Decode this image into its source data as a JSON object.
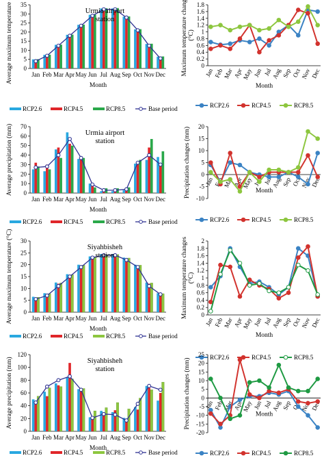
{
  "colors": {
    "rcp26": "#29a8e0",
    "rcp45": "#e0262a",
    "rcp85": "#2aa84a",
    "rcp85_light": "#8dc63f",
    "base": "#2e3192",
    "line26": "#3b83c4",
    "line45": "#d2332e",
    "line85_light": "#8dc63f",
    "line85_green": "#1f9a43"
  },
  "chart_data": [
    {
      "id": "p1",
      "type": "bar",
      "title": "Urmia airport\nstation",
      "xlabel": "Month",
      "ylabel": "Average maximum temperature (°C)",
      "categories": [
        "Jan",
        "Feb",
        "Mar",
        "Apr",
        "May",
        "Jun",
        "Jul",
        "Aug",
        "Sep",
        "Oct",
        "Nov",
        "Dec"
      ],
      "ylim": [
        0,
        35
      ],
      "yticks": [
        0,
        5,
        10,
        15,
        20,
        25,
        30,
        35
      ],
      "series": [
        {
          "name": "RCP2.6",
          "values": [
            5,
            7.5,
            13,
            18.5,
            24,
            29.5,
            33,
            33,
            28.5,
            21.5,
            13.5,
            6.5
          ]
        },
        {
          "name": "RCP4.5",
          "values": [
            4.8,
            7.3,
            12.8,
            18.3,
            23.8,
            29.3,
            32.8,
            32.9,
            28.3,
            21.3,
            13.3,
            6.3
          ]
        },
        {
          "name": "RCP8.5",
          "values": [
            5.1,
            7.6,
            13.1,
            18.6,
            24.1,
            29.6,
            33.1,
            33.2,
            28.6,
            21.6,
            13.6,
            6.6
          ]
        }
      ],
      "base_period": [
        4,
        7,
        12.5,
        18,
        23.5,
        29,
        32.5,
        32.5,
        28,
        21,
        12.5,
        5.5
      ],
      "legend": [
        "RCP2.6",
        "RCP4.5",
        "RCP8.5",
        "Base period"
      ]
    },
    {
      "id": "p2",
      "type": "line",
      "title": "",
      "xlabel": "Month",
      "ylabel": "Maximum temperature changes (°C)",
      "categories": [
        "Jan",
        "Feb",
        "Mar",
        "Apr",
        "May",
        "Jun",
        "Jul",
        "Aug",
        "Sep",
        "Oct",
        "Nov",
        "Dec"
      ],
      "ylim": [
        0,
        1.8
      ],
      "yticks": [
        0,
        0.2,
        0.4,
        0.6,
        0.8,
        1,
        1.2,
        1.4,
        1.6,
        1.8
      ],
      "series": [
        {
          "name": "RCP2.6",
          "values": [
            0.7,
            0.62,
            0.65,
            0.75,
            0.7,
            0.8,
            0.6,
            1.0,
            1.2,
            0.9,
            1.65,
            1.6
          ]
        },
        {
          "name": "RCP4.5",
          "values": [
            0.5,
            0.6,
            0.5,
            0.8,
            1.2,
            0.4,
            0.75,
            0.9,
            1.2,
            1.65,
            1.55,
            0.65
          ]
        },
        {
          "name": "RCP8.5",
          "values": [
            1.15,
            1.2,
            1.05,
            1.15,
            1.2,
            1.05,
            1.1,
            1.35,
            1.15,
            1.3,
            1.75,
            1.2
          ]
        }
      ],
      "legend": [
        "RCP2.6",
        "RCP4.5",
        "RCP8.5"
      ]
    },
    {
      "id": "p3",
      "type": "bar",
      "title": "Urmia airport\nstation",
      "xlabel": "Month",
      "ylabel": "Average precipitation (mm)",
      "categories": [
        "Jan",
        "Feb",
        "Mar",
        "Apr",
        "May",
        "Jun",
        "Jul",
        "Aug",
        "Sep",
        "Oct",
        "Nov",
        "Dec"
      ],
      "ylim": [
        0,
        70
      ],
      "yticks": [
        0,
        10,
        20,
        30,
        40,
        50,
        60,
        70
      ],
      "series": [
        {
          "name": "RCP2.6",
          "values": [
            25,
            23,
            46,
            64,
            36,
            10,
            2,
            2,
            3,
            31,
            35,
            38
          ]
        },
        {
          "name": "RCP4.5",
          "values": [
            32,
            30,
            48,
            52,
            38,
            8,
            4,
            4,
            5,
            33,
            48,
            30
          ]
        },
        {
          "name": "RCP8.5",
          "values": [
            28,
            25,
            37,
            50,
            37,
            6,
            5,
            5,
            6,
            35,
            57,
            44
          ]
        }
      ],
      "base_period": [
        27,
        28,
        40,
        57,
        37,
        9,
        3,
        3,
        4,
        32,
        40,
        30
      ],
      "legend": [
        "RCP2.6",
        "RCP4.5",
        "RCP8.5",
        "Base period"
      ]
    },
    {
      "id": "p4",
      "type": "line",
      "title": "",
      "xlabel": "Month",
      "ylabel": "Precipitation changes (mm)",
      "categories": [
        "Jan",
        "Feb",
        "Mar",
        "Apr",
        "May",
        "Jun",
        "Jul",
        "Aug",
        "Sep",
        "Oct",
        "Nov",
        "Dec"
      ],
      "ylim": [
        -10,
        20
      ],
      "yticks": [
        -10,
        -5,
        0,
        5,
        10,
        15,
        20
      ],
      "series": [
        {
          "name": "RCP2.6",
          "values": [
            4,
            -3,
            5,
            4,
            1,
            0,
            -1,
            -1,
            1,
            -1,
            -4,
            9
          ]
        },
        {
          "name": "RCP4.5",
          "values": [
            5,
            -4,
            9,
            -5,
            1,
            -1,
            1,
            1,
            1,
            1,
            8,
            -1
          ]
        },
        {
          "name": "RCP8.5",
          "values": [
            1,
            -3,
            -2,
            -7,
            1,
            -3,
            2,
            2,
            1,
            3,
            18,
            15
          ]
        }
      ],
      "legend": [
        "RCP2.6",
        "RCP4.5",
        "RCP8.5"
      ]
    },
    {
      "id": "p5",
      "type": "bar",
      "title": "Siyahbisheh\nstation",
      "xlabel": "Month",
      "ylabel": "Average maximum temperature (°C)",
      "categories": [
        "Jan",
        "Feb",
        "Mar",
        "Apr",
        "May",
        "Jun",
        "Jul",
        "Aug",
        "Sep",
        "Oct",
        "Nov",
        "Dec"
      ],
      "ylim": [
        0,
        30
      ],
      "yticks": [
        0,
        5,
        10,
        15,
        20,
        25,
        30
      ],
      "series": [
        {
          "name": "RCP2.6",
          "values": [
            6.5,
            8,
            12.5,
            16,
            20,
            23.5,
            24.5,
            24.5,
            23,
            20,
            12.5,
            8
          ]
        },
        {
          "name": "RCP4.5",
          "values": [
            6,
            7.5,
            12,
            15.5,
            19.5,
            23,
            24,
            24,
            22.5,
            19.5,
            12,
            7.5
          ]
        },
        {
          "name": "RCP8.5",
          "values": [
            6.3,
            7.8,
            12.3,
            15.8,
            19.8,
            23.3,
            24.3,
            24.3,
            22.8,
            19.8,
            12.3,
            7.8
          ]
        }
      ],
      "base_period": [
        5.5,
        7,
        11,
        15,
        19,
        23,
        24,
        24,
        22,
        19,
        11,
        7.5
      ],
      "legend": [
        "RCP2.6",
        "RCP4.5",
        "RCP8.5",
        "Base period"
      ]
    },
    {
      "id": "p6",
      "type": "line",
      "title": "",
      "xlabel": "Month",
      "ylabel": "Maximum temperature changes (°C)",
      "categories": [
        "Jan",
        "Feb",
        "Mar",
        "Apr",
        "May",
        "Jun",
        "Jul",
        "Aug",
        "Sep",
        "Oct",
        "Nov",
        "Dec"
      ],
      "ylim": [
        0,
        2
      ],
      "yticks": [
        0,
        0.2,
        0.4,
        0.6,
        0.8,
        1,
        1.2,
        1.4,
        1.6,
        1.8,
        2
      ],
      "series": [
        {
          "name": "RCP2.6",
          "values": [
            0.75,
            1.05,
            1.8,
            1.3,
            0.85,
            0.9,
            0.75,
            0.55,
            0.75,
            1.8,
            1.6,
            0.5
          ]
        },
        {
          "name": "RCP4.5",
          "values": [
            0.35,
            1.35,
            1.3,
            0.5,
            0.95,
            0.8,
            0.7,
            0.45,
            0.6,
            1.55,
            1.85,
            0.5
          ]
        },
        {
          "name": "RCP8.5",
          "values": [
            0.1,
            1.1,
            1.75,
            1.4,
            0.8,
            0.85,
            0.65,
            0.6,
            0.75,
            1.35,
            1.2,
            0.55
          ]
        }
      ],
      "legend": [
        "RCP2.6",
        "RCP4.5",
        "RCP8.5"
      ]
    },
    {
      "id": "p7",
      "type": "bar",
      "title": "Siyahbisheh\nstation",
      "xlabel": "Month",
      "ylabel": "Average precipitation (mm)",
      "categories": [
        "Jan",
        "Feb",
        "Mar",
        "Apr",
        "May",
        "Jun",
        "Jul",
        "Aug",
        "Sep",
        "Oct",
        "Nov",
        "Dec"
      ],
      "ylim": [
        0,
        120
      ],
      "yticks": [
        0,
        20,
        40,
        60,
        80,
        100,
        120
      ],
      "series": [
        {
          "name": "RCP2.6",
          "values": [
            50,
            62,
            75,
            85,
            66,
            22,
            32,
            30,
            21,
            38,
            71,
            48
          ]
        },
        {
          "name": "RCP4.5",
          "values": [
            47,
            55,
            72,
            107,
            65,
            20,
            28,
            33,
            17,
            34,
            68,
            60
          ]
        },
        {
          "name": "RCP8.5",
          "values": [
            55,
            68,
            70,
            82,
            67,
            32,
            37,
            45,
            35,
            52,
            65,
            77
          ]
        }
      ],
      "base_period": [
        45,
        70,
        80,
        86,
        65,
        21,
        27,
        26,
        17,
        43,
        71,
        65
      ],
      "legend": [
        "RCP2.6",
        "RCP4.5",
        "RCP8.5",
        "Base period"
      ]
    },
    {
      "id": "p8",
      "type": "line",
      "title": "",
      "xlabel": "Month",
      "ylabel": "Precipitation changes (mm)",
      "categories": [
        "Jan",
        "Feb",
        "Mar",
        "Apr",
        "May",
        "Jun",
        "Jul",
        "Aug",
        "Sep",
        "Oct",
        "Nov",
        "Dec"
      ],
      "ylim": [
        -20,
        25
      ],
      "yticks": [
        -20,
        -15,
        -10,
        -5,
        0,
        5,
        10,
        15,
        20,
        25
      ],
      "series": [
        {
          "name": "RCP2.6",
          "values": [
            -7,
            -17,
            -5,
            -1,
            1,
            1,
            3,
            2,
            4,
            -5,
            -10,
            -17
          ]
        },
        {
          "name": "RCP4.5",
          "values": [
            -9,
            -15,
            -10,
            22,
            2,
            0,
            4,
            3,
            5,
            -2,
            -3,
            -2
          ]
        },
        {
          "name": "RCP8.5",
          "values": [
            11,
            0,
            -12,
            -10,
            9,
            10,
            6,
            19,
            6,
            4,
            4,
            11
          ]
        }
      ],
      "legend": [
        "RCP2.6",
        "RCP4.5",
        "RCP8.5"
      ]
    }
  ]
}
